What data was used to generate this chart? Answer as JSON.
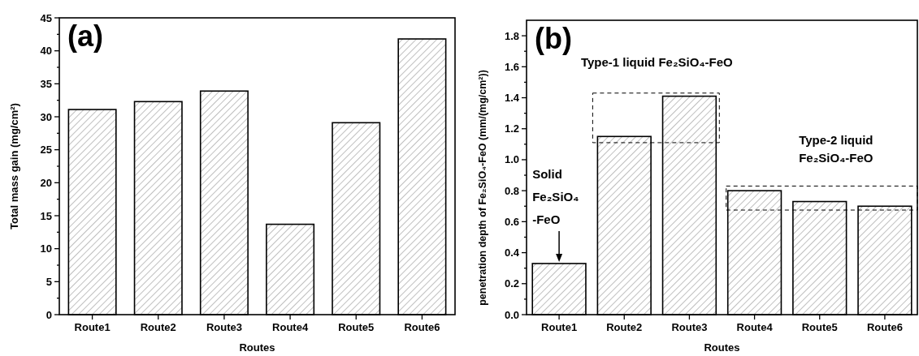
{
  "chart_data": [
    {
      "type": "bar",
      "title": "(a)",
      "xlabel": "Routes",
      "ylabel": "Total mass gain (mg/cm²)",
      "categories": [
        "Route1",
        "Route2",
        "Route3",
        "Route4",
        "Route5",
        "Route6"
      ],
      "values": [
        31.1,
        32.3,
        33.9,
        13.7,
        29.1,
        41.8
      ],
      "color": "#000000",
      "ylim": [
        0,
        45
      ],
      "yticks": [
        0,
        {
          "value": 2.5,
          "label": null
        },
        5,
        {
          "value": 7.5,
          "label": null
        },
        10,
        {
          "value": 12.5,
          "label": null
        },
        15,
        {
          "value": 17.5,
          "label": null
        },
        20,
        {
          "value": 22.5,
          "label": null
        },
        25,
        {
          "value": 27.5,
          "label": null
        },
        30,
        {
          "value": 32.5,
          "label": null
        },
        35,
        {
          "value": 37.5,
          "label": null
        },
        40,
        {
          "value": 42.5,
          "label": null
        },
        45
      ]
    },
    {
      "type": "bar",
      "title": "(b)",
      "xlabel": "Routes",
      "ylabel": "penetration depth of Fe₂SiO₄-FeO (mm/(mg/cm²))",
      "categories": [
        "Route1",
        "Route2",
        "Route3",
        "Route4",
        "Route5",
        "Route6"
      ],
      "values": [
        0.33,
        1.15,
        1.41,
        0.8,
        0.73,
        0.7
      ],
      "color": "#000000",
      "ylim": [
        0,
        1.9
      ],
      "yticks": [
        {
          "value": 0,
          "label": "0.0"
        },
        {
          "value": 0.1,
          "label": null
        },
        {
          "value": 0.2,
          "label": "0.2"
        },
        {
          "value": 0.3,
          "label": null
        },
        {
          "value": 0.4,
          "label": "0.4"
        },
        {
          "value": 0.5,
          "label": null
        },
        {
          "value": 0.6,
          "label": "0.6"
        },
        {
          "value": 0.7,
          "label": null
        },
        {
          "value": 0.8,
          "label": "0.8"
        },
        {
          "value": 0.9,
          "label": null
        },
        {
          "value": 1.0,
          "label": "1.0"
        },
        {
          "value": 1.1,
          "label": null
        },
        {
          "value": 1.2,
          "label": "1.2"
        },
        {
          "value": 1.3,
          "label": null
        },
        {
          "value": 1.4,
          "label": "1.4"
        },
        {
          "value": 1.5,
          "label": null
        },
        {
          "value": 1.6,
          "label": "1.6"
        },
        {
          "value": 1.7,
          "label": null
        },
        {
          "value": 1.8,
          "label": "1.8"
        }
      ],
      "annotations": [
        "Solid\nFe₂SiO₄\n-FeO",
        "Type-1 liquid Fe₂SiO₄-FeO",
        "Type-2 liquid\nFe₂SiO₄-FeO"
      ]
    }
  ]
}
